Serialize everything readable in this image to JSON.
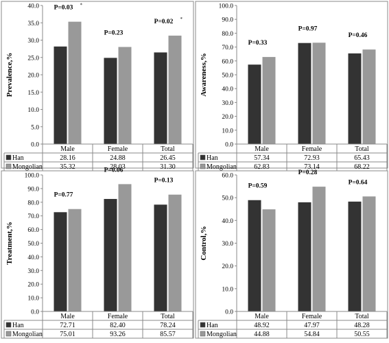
{
  "series_colors": {
    "Han": "#333333",
    "Mongolian": "#999999"
  },
  "chart_data": [
    {
      "type": "bar",
      "ylabel": "Prevalence,%",
      "ylim": [
        0,
        40
      ],
      "yticks": [
        "0.0",
        "5.0",
        "10.0",
        "15.0",
        "20.0",
        "25.0",
        "30.0",
        "35.0",
        "40.0"
      ],
      "categories": [
        "Male",
        "Female",
        "Total"
      ],
      "series": [
        {
          "name": "Han",
          "values": [
            28.16,
            24.88,
            26.45
          ],
          "labels": [
            "28.16",
            "24.88",
            "26.45"
          ]
        },
        {
          "name": "Mongolian",
          "values": [
            35.32,
            28.03,
            31.3
          ],
          "labels": [
            "35.32",
            "28.03",
            "31.30"
          ]
        }
      ],
      "annotations": [
        {
          "category": "Male",
          "text": "P=0.03",
          "sup": "*"
        },
        {
          "category": "Female",
          "text": "P=0.23",
          "sup": ""
        },
        {
          "category": "Total",
          "text": "P=0.02",
          "sup": "*"
        }
      ],
      "grid": false,
      "legend": "table-below"
    },
    {
      "type": "bar",
      "ylabel": "Awareness,%",
      "ylim": [
        0,
        100
      ],
      "yticks": [
        "0.0",
        "10.0",
        "20.0",
        "30.0",
        "40.0",
        "50.0",
        "60.0",
        "70.0",
        "80.0",
        "90.0",
        "100.0"
      ],
      "categories": [
        "Male",
        "Female",
        "Total"
      ],
      "series": [
        {
          "name": "Han",
          "values": [
            57.34,
            72.93,
            65.43
          ],
          "labels": [
            "57.34",
            "72.93",
            "65.43"
          ]
        },
        {
          "name": "Mongolian",
          "values": [
            62.83,
            73.14,
            68.22
          ],
          "labels": [
            "62.83",
            "73.14",
            "68.22"
          ]
        }
      ],
      "annotations": [
        {
          "category": "Male",
          "text": "P=0.33",
          "sup": ""
        },
        {
          "category": "Female",
          "text": "P=0.97",
          "sup": ""
        },
        {
          "category": "Total",
          "text": "P=0.46",
          "sup": ""
        }
      ],
      "grid": false,
      "legend": "table-below"
    },
    {
      "type": "bar",
      "ylabel": "Treatment,%",
      "ylim": [
        0,
        100
      ],
      "yticks": [
        "0.0",
        "10.0",
        "20.0",
        "30.0",
        "40.0",
        "50.0",
        "60.0",
        "70.0",
        "80.0",
        "90.0",
        "100.0"
      ],
      "categories": [
        "Male",
        "Female",
        "Total"
      ],
      "series": [
        {
          "name": "Han",
          "values": [
            72.71,
            82.4,
            78.24
          ],
          "labels": [
            "72.71",
            "82.40",
            "78.24"
          ]
        },
        {
          "name": "Mongolian",
          "values": [
            75.01,
            93.26,
            85.57
          ],
          "labels": [
            "75.01",
            "93.26",
            "85.57"
          ]
        }
      ],
      "annotations": [
        {
          "category": "Male",
          "text": "P=0.77",
          "sup": ""
        },
        {
          "category": "Female",
          "text": "P=0.06",
          "sup": ""
        },
        {
          "category": "Total",
          "text": "P=0.13",
          "sup": ""
        }
      ],
      "grid": false,
      "legend": "table-below"
    },
    {
      "type": "bar",
      "ylabel": "Control,%",
      "ylim": [
        0,
        60
      ],
      "yticks": [
        "0.0",
        "10.0",
        "20.0",
        "30.0",
        "40.0",
        "50.0",
        "60.0"
      ],
      "categories": [
        "Male",
        "Female",
        "Total"
      ],
      "series": [
        {
          "name": "Han",
          "values": [
            48.92,
            47.97,
            48.28
          ],
          "labels": [
            "48.92",
            "47.97",
            "48.28"
          ]
        },
        {
          "name": "Mongolian",
          "values": [
            44.88,
            54.84,
            50.55
          ],
          "labels": [
            "44.88",
            "54.84",
            "50.55"
          ]
        }
      ],
      "annotations": [
        {
          "category": "Male",
          "text": "P=0.59",
          "sup": ""
        },
        {
          "category": "Female",
          "text": "P=0.28",
          "sup": ""
        },
        {
          "category": "Total",
          "text": "P=0.64",
          "sup": ""
        }
      ],
      "grid": false,
      "legend": "table-below"
    }
  ]
}
